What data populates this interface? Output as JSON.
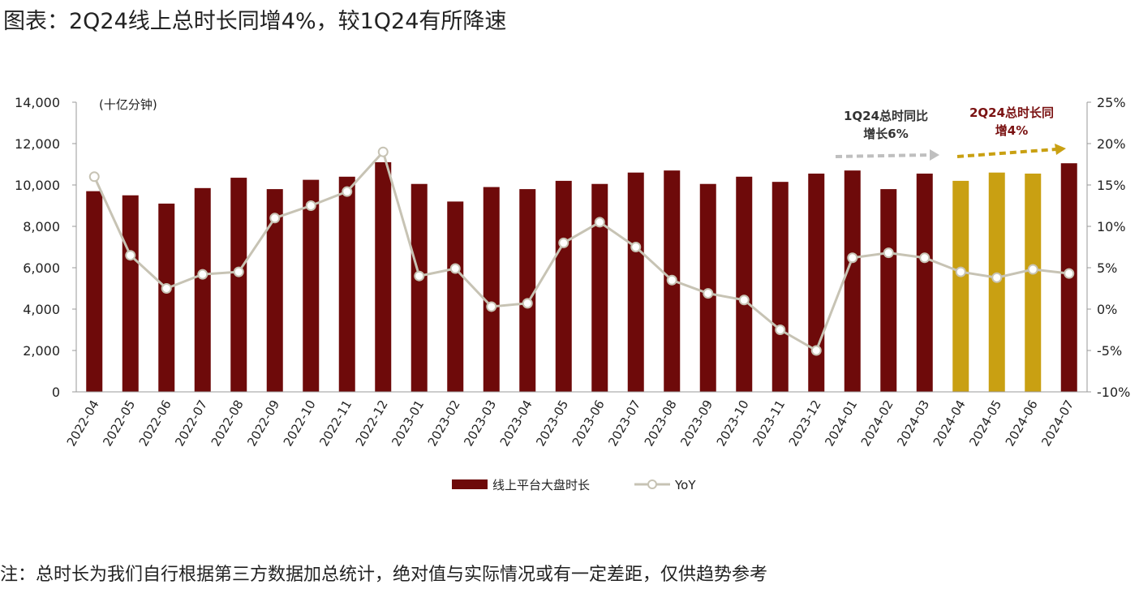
{
  "title": "图表：2Q24线上总时长同增4%，较1Q24有所降速",
  "footnote": "注：总时长为我们自行根据第三方数据加总统计，绝对值与实际情况或有一定差距，仅供趋势参考",
  "colors": {
    "bar": "#6e0a0a",
    "bar_highlight": "#c9a012",
    "line": "#c7c3b4",
    "annot1": "#333333",
    "annot2": "#7a1212"
  },
  "chart_data": {
    "type": "bar",
    "categories": [
      "2022-04",
      "2022-05",
      "2022-06",
      "2022-07",
      "2022-08",
      "2022-09",
      "2022-10",
      "2022-11",
      "2022-12",
      "2023-01",
      "2023-02",
      "2023-03",
      "2023-04",
      "2023-05",
      "2023-06",
      "2023-07",
      "2023-08",
      "2023-09",
      "2023-10",
      "2023-11",
      "2023-12",
      "2024-01",
      "2024-02",
      "2024-03",
      "2024-04",
      "2024-05",
      "2024-06",
      "2024-07"
    ],
    "series": [
      {
        "name": "线上平台大盘时长",
        "type": "bar",
        "values": [
          9700,
          9500,
          9100,
          9850,
          10350,
          9800,
          10250,
          10400,
          11100,
          10050,
          9200,
          9900,
          9800,
          10200,
          10050,
          10600,
          10700,
          10050,
          10400,
          10150,
          10550,
          10700,
          9800,
          10550,
          10200,
          10600,
          10550,
          11050
        ],
        "highlight_indices": [
          24,
          25,
          26
        ]
      },
      {
        "name": "YoY",
        "type": "line",
        "axis": "right",
        "values": [
          16.0,
          6.5,
          2.5,
          4.2,
          4.5,
          11.0,
          12.5,
          14.2,
          19.0,
          4.0,
          4.9,
          0.3,
          0.7,
          8.0,
          10.5,
          7.5,
          3.5,
          1.9,
          1.1,
          -2.5,
          -5.0,
          6.2,
          6.8,
          6.2,
          4.5,
          3.8,
          4.8,
          4.3
        ]
      }
    ],
    "y_left": {
      "lim": [
        0,
        14000
      ],
      "ticks": [
        "0",
        "2,000",
        "4,000",
        "6,000",
        "8,000",
        "10,000",
        "12,000",
        "14,000"
      ],
      "unit_label": "(十亿分钟)"
    },
    "y_right": {
      "lim": [
        -10,
        25
      ],
      "ticks": [
        "-10%",
        "-5%",
        "0%",
        "5%",
        "10%",
        "15%",
        "20%",
        "25%"
      ]
    },
    "annotations": [
      {
        "line1": "1Q24总时同比",
        "line2": "增长6%"
      },
      {
        "line1": "2Q24总时长同",
        "line2": "增4%"
      }
    ],
    "legend": {
      "position": "bottom",
      "bar_label": "线上平台大盘时长",
      "line_label": "YoY"
    },
    "grid": false
  }
}
